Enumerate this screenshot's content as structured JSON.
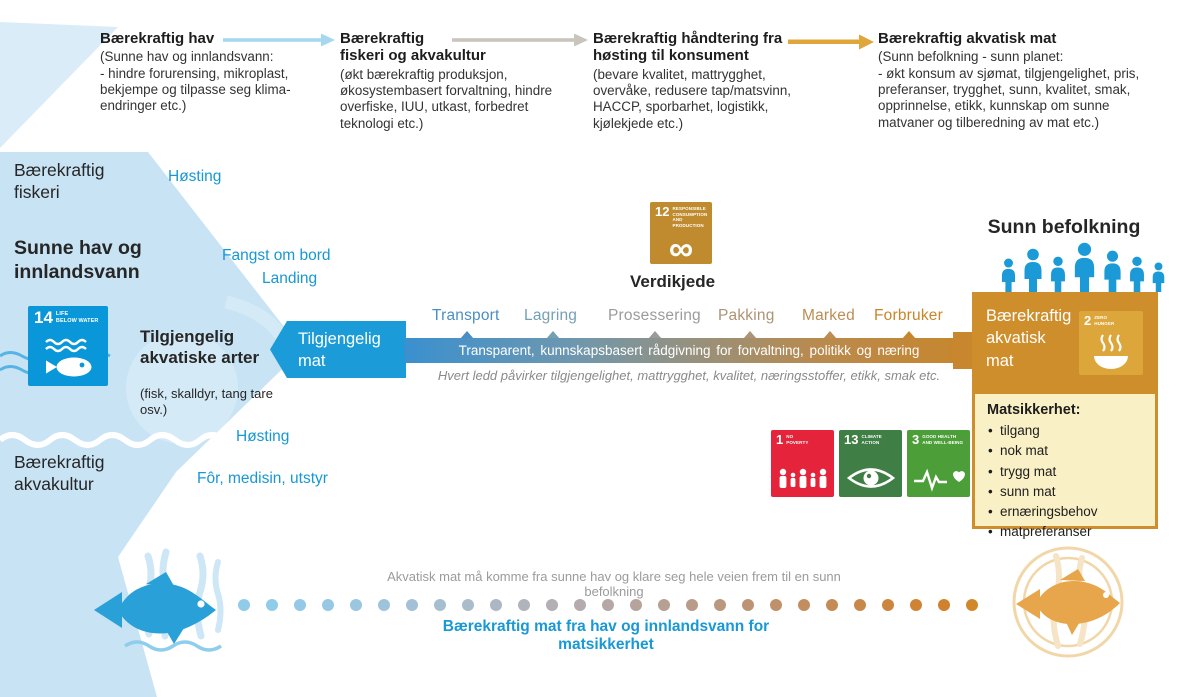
{
  "top_flow": {
    "blocks": [
      {
        "title": "Bærekraftig hav",
        "body": "(Sunne hav og innlandsvann:\n- hindre forurensing, mikroplast,\nbekjempe og tilpasse seg klima-\nendringer etc.)"
      },
      {
        "title": "Bærekraftig\nfiskeri og akvakultur",
        "body": "(økt bærekraftig produksjon,\nøkosystembasert forvaltning, hindre\noverfiske, IUU, utkast, forbedret\nteknologi etc.)"
      },
      {
        "title": "Bærekraftig håndtering fra\nhøsting til konsument",
        "body": "(bevare kvalitet, mattrygghet,\novervåke, redusere tap/matsvinn,\nHACCP, sporbarhet, logistikk,\nkjølekjede etc.)"
      },
      {
        "title": "Bærekraftig akvatisk mat",
        "body": "(Sunn befolkning - sunn planet:\n- økt konsum av sjømat, tilgjengelighet, pris,\npreferanser, trygghet, sunn, kvalitet, smak,\nopprinnelse, etikk, kunnskap om sunne\nmatvaner og tilberedning av mat etc.)"
      }
    ],
    "arrow_colors": [
      "#a6d7f0",
      "#c9c5bd",
      "#dfa63c"
    ]
  },
  "left": {
    "fisheries_label": "Bærekraftig\nfiskeri",
    "harvest_top": "Høsting",
    "healthy_seas_label": "Sunne hav og\ninnlandsvann",
    "catch_onboard": "Fangst om bord",
    "landing": "Landing",
    "available_species_title": "Tilgjengelig\nakvatiske arter",
    "available_species_note": "(fisk, skalldyr, tang tare\nosv.)",
    "available_food_box": "Tilgjengelig\nmat",
    "harvest_bottom": "Høsting",
    "feed_medicine": "Fôr, medisin, utstyr",
    "aquaculture_label": "Bærekraftig\nakvakultur"
  },
  "value_chain": {
    "title": "Verdikjede",
    "stages": [
      {
        "label": "Transport",
        "color": "#4a8ec6"
      },
      {
        "label": "Lagring",
        "color": "#74a0b4"
      },
      {
        "label": "Prosessering",
        "color": "#9b9b9b"
      },
      {
        "label": "Pakking",
        "color": "#ad9377"
      },
      {
        "label": "Marked",
        "color": "#bb8d53"
      },
      {
        "label": "Forbruker",
        "color": "#c8862b"
      }
    ],
    "bar_text": "Transparent, kunnskapsbasert rådgivning for forvaltning, politikk og næring",
    "bar_note": "Hvert ledd påvirker tilgjengelighet, mattrygghet, kvalitet, næringsstoffer, etikk, smak etc."
  },
  "sdg": {
    "sdg14": {
      "number": "14",
      "label": "LIFE\nBELOW WATER",
      "color": "#0a97d9",
      "icon": "fish-and-waves"
    },
    "sdg12": {
      "number": "12",
      "label": "RESPONSIBLE\nCONSUMPTION\nAND PRODUCTION",
      "color": "#bf8b2e",
      "icon": "infinity-loop",
      "infinity_glyph": "∞"
    },
    "sdg2": {
      "number": "2",
      "label": "ZERO\nHUNGER",
      "color": "#dda63a",
      "icon": "steaming-bowl"
    },
    "sdg1": {
      "number": "1",
      "label": "NO\nPOVERTY",
      "color": "#e5243b",
      "icon": "family-figures"
    },
    "sdg13": {
      "number": "13",
      "label": "CLIMATE\nACTION",
      "color": "#3f7e44",
      "icon": "eye-globe"
    },
    "sdg3": {
      "number": "3",
      "label": "GOOD HEALTH\nAND WELL-BEING",
      "color": "#4c9f38",
      "icon": "heartbeat-heart"
    }
  },
  "right": {
    "population_title": "Sunn befolkning",
    "food_box_label": "Bærekraftig\nakvatisk\nmat",
    "security_title": "Matsikkerhet:",
    "security_items": [
      "tilgang",
      "nok mat",
      "trygg mat",
      "sunn mat",
      "ernæringsbehov",
      "matpreferanser"
    ]
  },
  "footer": {
    "top_note": "Akvatisk mat må komme fra sunne hav og klare seg hele veien frem til en sunn befolkning",
    "bottom_note": "Bærekraftig mat fra hav og innlandsvann for matsikkerhet",
    "dot_colors": [
      "#90cbea",
      "#90cbea",
      "#93c9e7",
      "#96c8e4",
      "#9ac6e0",
      "#9ec4db",
      "#a2c1d6",
      "#a6bed0",
      "#aabbca",
      "#adb7c3",
      "#b0b3bc",
      "#b2afb5",
      "#b3abad",
      "#b4a7a5",
      "#b5a39c",
      "#b6a093",
      "#b89c89",
      "#ba987f",
      "#bc9475",
      "#bf916b",
      "#c28e60",
      "#c58b55",
      "#c8884a",
      "#cb853f",
      "#ce8335",
      "#d1812c",
      "#d2882a"
    ]
  },
  "colors": {
    "accent_blue": "#1b9ad7",
    "light_blue_bg": "#c8e3f4",
    "pale_blue": "#daecf8",
    "orange_box": "#cf8e2c",
    "cream_box": "#faf0c5",
    "fish_blue": "#29a0d8",
    "fish_orange": "#e7a64b"
  }
}
